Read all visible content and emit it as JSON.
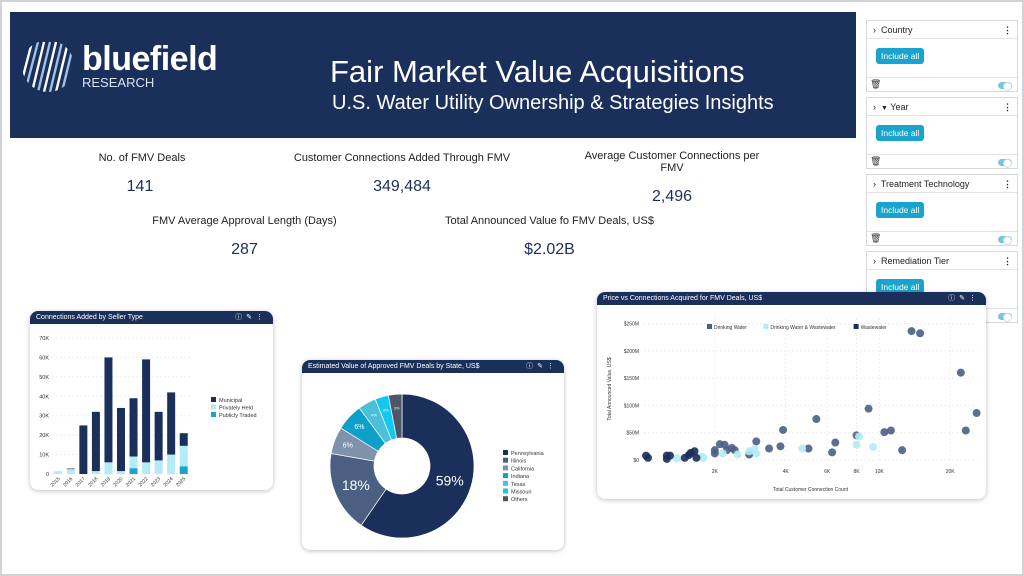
{
  "header": {
    "logo_name": "bluefield",
    "logo_sub": "RESEARCH",
    "title": "Fair Market Value Acquisitions",
    "subtitle": "U.S. Water Utility Ownership & Strategies Insights"
  },
  "kpis": [
    {
      "label": "No. of FMV Deals",
      "value": "141"
    },
    {
      "label": "Customer Connections Added Through FMV",
      "value": "349,484"
    },
    {
      "label": "Average Customer Connections per FMV",
      "value": "2,496"
    },
    {
      "label": "FMV Average Approval Length (Days)",
      "value": "287"
    },
    {
      "label": "Total Announced Value fo FMV Deals, US$",
      "value": "$2.02B"
    }
  ],
  "filters": [
    {
      "label": "Country",
      "button": "Include all",
      "filtered": false,
      "enabled": true
    },
    {
      "label": "Year",
      "button": "Include all",
      "filtered": true,
      "enabled": true
    },
    {
      "label": "Treatment Technology",
      "button": "Include all",
      "filtered": false,
      "enabled": true
    },
    {
      "label": "Remediation Tier",
      "button": "Include all",
      "filtered": false,
      "enabled": true
    }
  ],
  "chart_data": [
    {
      "type": "bar",
      "stacked": true,
      "title": "Connections Added by Seller Type",
      "categories": [
        "2015",
        "2016",
        "2017",
        "2018",
        "2019",
        "2020",
        "2021",
        "2022",
        "2023",
        "2024",
        "2025"
      ],
      "series": [
        {
          "name": "Municipal",
          "color": "#1b2f5b",
          "values": [
            0,
            300,
            25000,
            30500,
            54000,
            32500,
            30000,
            53000,
            25000,
            32000,
            6500
          ]
        },
        {
          "name": "Privately Held",
          "color": "#b3ecf5",
          "values": [
            1500,
            2500,
            0,
            1500,
            6000,
            1500,
            6000,
            6000,
            7000,
            10000,
            10500
          ]
        },
        {
          "name": "Publicly Traded",
          "color": "#1aa3cc",
          "values": [
            0,
            0,
            0,
            0,
            0,
            0,
            3000,
            0,
            0,
            0,
            4000
          ]
        }
      ],
      "yticks": [
        "0",
        "10K",
        "20K",
        "30K",
        "40K",
        "50K",
        "60K",
        "70K"
      ],
      "ylim": [
        0,
        70000
      ],
      "legend": "right",
      "grid": true
    },
    {
      "type": "pie",
      "donut": true,
      "title": "Estimated Value of Approved FMV Deals by State, US$",
      "categories": [
        "Pennsylvania",
        "Illinois",
        "California",
        "Indiana",
        "Texas",
        "Missouri",
        "Others"
      ],
      "values": [
        59,
        18,
        6,
        6,
        4,
        3,
        3
      ],
      "labels": [
        "59%",
        "18%",
        "6%",
        "6%",
        "4%",
        "3%",
        "3%"
      ],
      "colors": [
        "#1b2f5b",
        "#4a5f82",
        "#7e93ab",
        "#0ea0c8",
        "#4cc0d8",
        "#12c8f0",
        "#4d5566"
      ],
      "legend": "right"
    },
    {
      "type": "scatter",
      "title": "Price vs Connections Acquired for FMV Deals, US$",
      "xlabel": "Total Customer Connection Count",
      "ylabel": "Total Announced Value, US$",
      "xscale": "log",
      "xlim": [
        1000,
        26000
      ],
      "ylim": [
        0,
        260
      ],
      "xticks": [
        {
          "v": 2000,
          "t": "2K"
        },
        {
          "v": 4000,
          "t": "4K"
        },
        {
          "v": 6000,
          "t": "6K"
        },
        {
          "v": 8000,
          "t": "8K"
        },
        {
          "v": 10000,
          "t": "10K"
        },
        {
          "v": 20000,
          "t": "20K"
        }
      ],
      "yticks": [
        {
          "v": 0,
          "t": "$0"
        },
        {
          "v": 50,
          "t": "$50M"
        },
        {
          "v": 100,
          "t": "$100M"
        },
        {
          "v": 150,
          "t": "$150M"
        },
        {
          "v": 200,
          "t": "$200M"
        },
        {
          "v": 250,
          "t": "$250M"
        }
      ],
      "legend": "top",
      "grid": true,
      "series": [
        {
          "name": "Drinking Water",
          "color": "#4a5f85",
          "points": [
            [
              13700,
              236
            ],
            [
              14900,
              232
            ],
            [
              22200,
              160
            ],
            [
              25900,
              86
            ],
            [
              23300,
              54
            ],
            [
              9000,
              94
            ],
            [
              5400,
              75
            ],
            [
              3900,
              55
            ],
            [
              3000,
              34
            ],
            [
              10500,
              51
            ],
            [
              11200,
              54
            ],
            [
              12500,
              18
            ],
            [
              8000,
              45
            ],
            [
              6500,
              32
            ],
            [
              6300,
              14
            ],
            [
              5000,
              21
            ],
            [
              3800,
              25
            ],
            [
              3400,
              21
            ],
            [
              2100,
              29
            ],
            [
              2200,
              28
            ],
            [
              2000,
              18
            ],
            [
              2000,
              12
            ],
            [
              2250,
              18
            ],
            [
              2360,
              22
            ],
            [
              2430,
              18
            ],
            [
              2800,
              10
            ]
          ]
        },
        {
          "name": "Drinking Water & Wastewater",
          "color": "#b3ecf5",
          "points": [
            [
              1380,
              3
            ],
            [
              1760,
              6
            ],
            [
              1790,
              4
            ],
            [
              2160,
              12
            ],
            [
              2500,
              10
            ],
            [
              2800,
              16
            ],
            [
              2950,
              20
            ],
            [
              3000,
              12
            ],
            [
              4700,
              21
            ],
            [
              8000,
              28
            ],
            [
              8200,
              43
            ],
            [
              9400,
              24
            ]
          ]
        },
        {
          "name": "Wastewater",
          "color": "#1b2f5b",
          "points": [
            [
              1640,
              16
            ],
            [
              1580,
              13
            ],
            [
              1670,
              4
            ],
            [
              1550,
              9
            ],
            [
              1490,
              4
            ],
            [
              1250,
              8
            ],
            [
              1290,
              8
            ],
            [
              1250,
              2
            ],
            [
              1040,
              4
            ],
            [
              1020,
              8
            ]
          ]
        }
      ]
    }
  ]
}
